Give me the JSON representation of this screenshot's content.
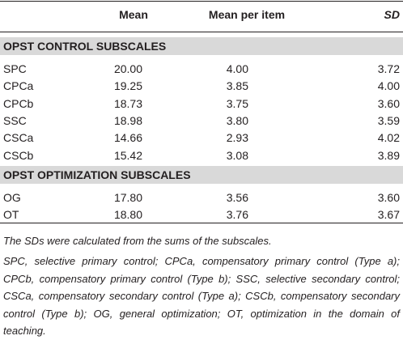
{
  "table": {
    "header": [
      "Mean",
      "Mean per item",
      "SD"
    ],
    "sections": [
      {
        "title": "OPST CONTROL SUBSCALES",
        "rows": [
          [
            "SPC",
            "20.00",
            "4.00",
            "3.72"
          ],
          [
            "CPCa",
            "19.25",
            "3.85",
            "4.00"
          ],
          [
            "CPCb",
            "18.73",
            "3.75",
            "3.60"
          ],
          [
            "SSC",
            "18.98",
            "3.80",
            "3.59"
          ],
          [
            "CSCa",
            "14.66",
            "2.93",
            "4.02"
          ],
          [
            "CSCb",
            "15.42",
            "3.08",
            "3.89"
          ]
        ]
      },
      {
        "title": "OPST OPTIMIZATION SUBSCALES",
        "rows": [
          [
            "OG",
            "17.80",
            "3.56",
            "3.60"
          ],
          [
            "OT",
            "18.80",
            "3.76",
            "3.67"
          ]
        ]
      }
    ]
  },
  "notes": [
    "The SDs were calculated from the sums of the subscales.",
    "SPC, selective primary control; CPCa, compensatory primary control (Type a); CPCb, compensatory primary control (Type b); SSC, selective secondary control; CSCa, compensatory secondary control (Type a); CSCb, compensatory secondary control (Type b); OG, general optimization; OT, optimization in the domain of teaching."
  ]
}
